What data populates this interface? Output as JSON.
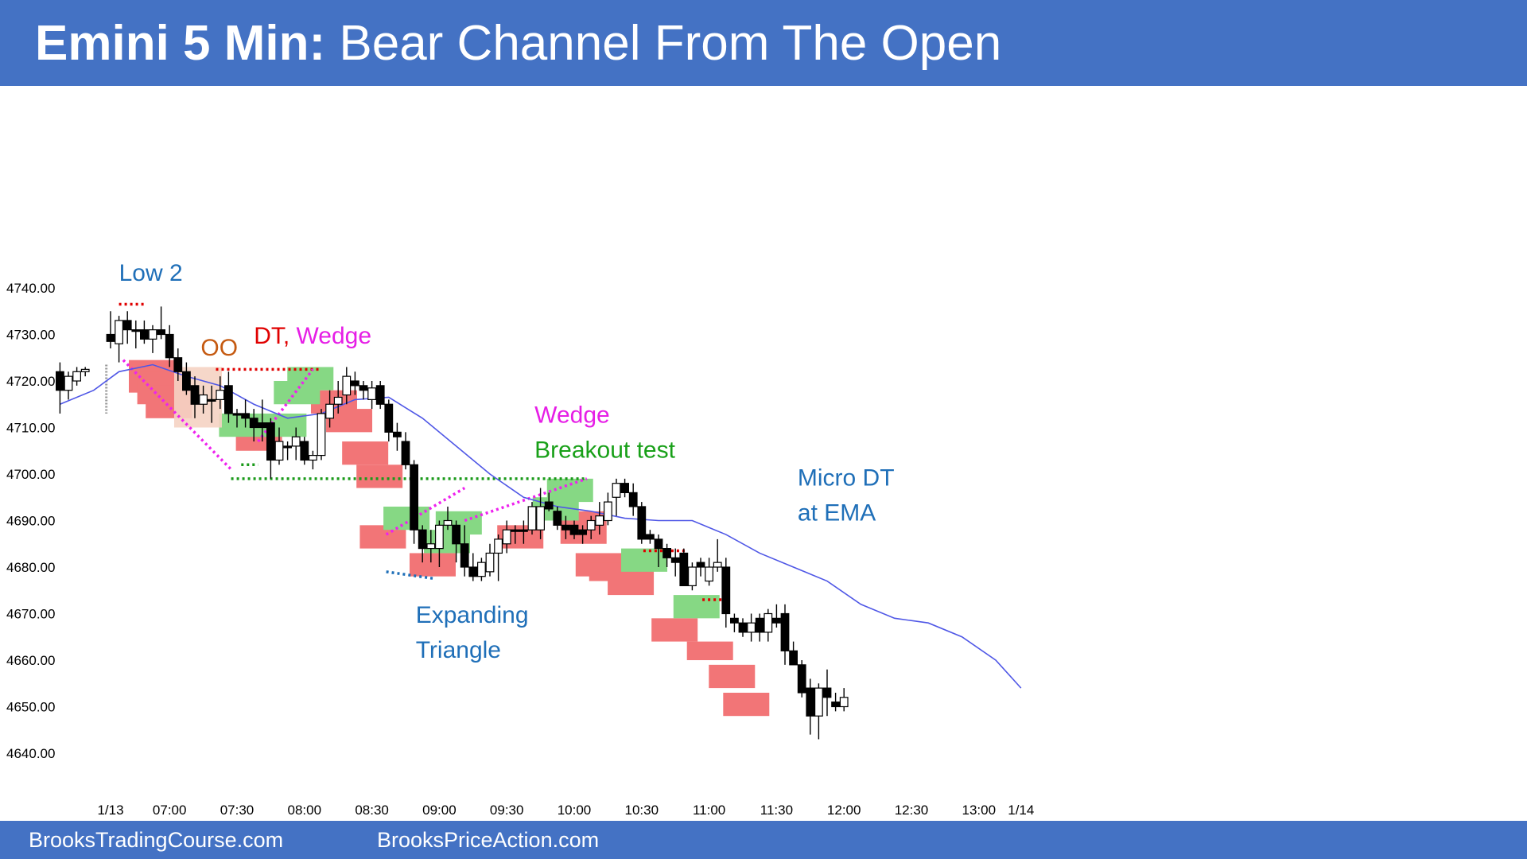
{
  "header": {
    "title_bold": "Emini 5 Min:",
    "title_rest": " Bear Channel From The Open"
  },
  "footer": {
    "left": "BrooksTradingCourse.com",
    "right": "BrooksPriceAction.com"
  },
  "colors": {
    "header_bg": "#4472c4",
    "bull_candle": "#ffffff",
    "bear_candle": "#000000",
    "ema": "#4f57e6",
    "bear_box": "#f27577",
    "bull_box": "#86d884",
    "oo_box": "#f5d3c3",
    "red_dot": "#e00000",
    "green_dot": "#1a9a1a",
    "magenta": "#ee22ee",
    "blue_dot": "#1f6fb8",
    "gray_dot": "#999999",
    "label_blue": "#1f6fb8",
    "label_orange": "#c55a11",
    "label_red": "#e00000",
    "label_magenta": "#e61ee6",
    "label_green": "#18a018"
  },
  "chart_data": {
    "type": "candlestick",
    "title": "Emini 5 Min: Bear Channel From The Open",
    "ylim": [
      4636,
      4752
    ],
    "x_range": [
      -1,
      143
    ],
    "y_ticks": [
      "4740.00",
      "4730.00",
      "4720.00",
      "4710.00",
      "4700.00",
      "4690.00",
      "4680.00",
      "4670.00",
      "4660.00",
      "4650.00",
      "4640.00"
    ],
    "x_ticks": [
      {
        "label": "1/13",
        "bar": 5
      },
      {
        "label": "07:00",
        "bar": 12
      },
      {
        "label": "07:30",
        "bar": 20
      },
      {
        "label": "08:00",
        "bar": 28
      },
      {
        "label": "08:30",
        "bar": 36
      },
      {
        "label": "09:00",
        "bar": 44
      },
      {
        "label": "09:30",
        "bar": 52
      },
      {
        "label": "10:00",
        "bar": 60
      },
      {
        "label": "10:30",
        "bar": 68
      },
      {
        "label": "11:00",
        "bar": 76
      },
      {
        "label": "11:30",
        "bar": 84
      },
      {
        "label": "12:00",
        "bar": 92
      },
      {
        "label": "12:30",
        "bar": 100
      },
      {
        "label": "13:00",
        "bar": 108
      },
      {
        "label": "1/14",
        "bar": 113
      }
    ],
    "overnight_candles": [
      [
        4722,
        4724,
        4713,
        4718
      ],
      [
        4718,
        4722,
        4716,
        4721
      ],
      [
        4720,
        4723,
        4719,
        4722
      ],
      [
        4722,
        4723,
        4721,
        4722.5
      ]
    ],
    "candles": [
      [
        4730,
        4735,
        4727,
        4728.5
      ],
      [
        4728,
        4734,
        4724,
        4733
      ],
      [
        4733,
        4735,
        4728,
        4731
      ],
      [
        4731,
        4733,
        4727,
        4731
      ],
      [
        4731,
        4733,
        4728,
        4729
      ],
      [
        4729,
        4732,
        4726,
        4731
      ],
      [
        4731,
        4736,
        4729,
        4730
      ],
      [
        4730,
        4732,
        4723,
        4725
      ],
      [
        4725,
        4727,
        4720,
        4722
      ],
      [
        4722,
        4724,
        4717,
        4718
      ],
      [
        4719,
        4721,
        4712,
        4715
      ],
      [
        4715,
        4719,
        4713,
        4717
      ],
      [
        4716,
        4719,
        4711,
        4716
      ],
      [
        4716,
        4721,
        4714,
        4718
      ],
      [
        4719,
        4722,
        4711,
        4713
      ],
      [
        4713,
        4714,
        4710,
        4713
      ],
      [
        4713,
        4716,
        4710,
        4712
      ],
      [
        4712,
        4714,
        4707,
        4710
      ],
      [
        4711,
        4716,
        4707,
        4710
      ],
      [
        4711,
        4712,
        4699,
        4703
      ],
      [
        4703,
        4710,
        4702,
        4707
      ],
      [
        4706,
        4707,
        4703,
        4706
      ],
      [
        4706,
        4710,
        4703,
        4708
      ],
      [
        4707,
        4708,
        4702,
        4703
      ],
      [
        4703,
        4705,
        4701,
        4704
      ],
      [
        4704,
        4714,
        4703,
        4713
      ],
      [
        4712,
        4718,
        4710,
        4715
      ],
      [
        4715,
        4720,
        4713,
        4716.5
      ],
      [
        4717,
        4723,
        4715,
        4721
      ],
      [
        4720,
        4722,
        4717,
        4719
      ],
      [
        4719,
        4720,
        4716,
        4718
      ],
      [
        4716,
        4720,
        4714,
        4718.5
      ],
      [
        4719,
        4720,
        4714,
        4715
      ],
      [
        4715,
        4716,
        4707,
        4709
      ],
      [
        4709,
        4711,
        4705,
        4708
      ],
      [
        4707,
        4709,
        4701,
        4702
      ],
      [
        4702,
        4703,
        4685,
        4688
      ],
      [
        4688,
        4689,
        4681,
        4684
      ],
      [
        4684,
        4688,
        4681,
        4685
      ],
      [
        4684,
        4690,
        4680,
        4689
      ],
      [
        4689,
        4693,
        4688,
        4690
      ],
      [
        4689,
        4690,
        4681,
        4685
      ],
      [
        4685,
        4689,
        4678,
        4680
      ],
      [
        4680,
        4683,
        4677,
        4678
      ],
      [
        4678,
        4682,
        4677,
        4681
      ],
      [
        4679,
        4685,
        4678,
        4683
      ],
      [
        4683,
        4687,
        4677,
        4686
      ],
      [
        4685,
        4690,
        4683,
        4688
      ],
      [
        4688,
        4689,
        4685,
        4688
      ],
      [
        4688,
        4690,
        4685,
        4688
      ],
      [
        4688,
        4694,
        4687,
        4693
      ],
      [
        4688,
        4697,
        4686,
        4693
      ],
      [
        4694,
        4696,
        4692,
        4692.5
      ],
      [
        4692,
        4693,
        4688,
        4689
      ],
      [
        4689,
        4691,
        4686,
        4688
      ],
      [
        4689,
        4690,
        4686,
        4687
      ],
      [
        4688,
        4689,
        4685,
        4687
      ],
      [
        4688,
        4691,
        4686,
        4690
      ],
      [
        4689,
        4694,
        4687,
        4691
      ],
      [
        4690,
        4696,
        4689,
        4694
      ],
      [
        4695,
        4699,
        4691,
        4698
      ],
      [
        4698,
        4699,
        4695,
        4696
      ],
      [
        4696,
        4698,
        4691,
        4693
      ],
      [
        4693,
        4694,
        4685,
        4686
      ],
      [
        4687,
        4688,
        4685,
        4686
      ],
      [
        4686,
        4687,
        4680,
        4684
      ],
      [
        4684,
        4685,
        4680,
        4682
      ],
      [
        4682,
        4684,
        4678,
        4681
      ],
      [
        4683,
        4684,
        4676,
        4676
      ],
      [
        4676,
        4681,
        4675,
        4680
      ],
      [
        4681,
        4682,
        4678,
        4680
      ],
      [
        4677,
        4682,
        4676,
        4680
      ],
      [
        4680,
        4686,
        4679,
        4681
      ],
      [
        4680,
        4682,
        4667,
        4670
      ],
      [
        4669,
        4670,
        4666,
        4668
      ],
      [
        4668,
        4669,
        4665,
        4666
      ],
      [
        4666,
        4670,
        4664,
        4668
      ],
      [
        4669,
        4670,
        4664,
        4666
      ],
      [
        4666,
        4671,
        4664,
        4670
      ],
      [
        4669,
        4672,
        4667,
        4668
      ],
      [
        4670,
        4672,
        4659,
        4662
      ],
      [
        4662,
        4664,
        4659,
        4659
      ],
      [
        4659,
        4660,
        4652,
        4653
      ],
      [
        4654,
        4656,
        4644,
        4648
      ],
      [
        4648,
        4655,
        4643,
        4654
      ],
      [
        4654,
        4658,
        4648,
        4652
      ],
      [
        4651,
        4653,
        4649,
        4650
      ],
      [
        4650,
        4654,
        4649,
        4652
      ]
    ],
    "ema_bars": [
      -1,
      3,
      6,
      10,
      14,
      18,
      22,
      26,
      30,
      34,
      38,
      42,
      46,
      50,
      54,
      58,
      62,
      66,
      70,
      74,
      78,
      82,
      86,
      90,
      94,
      98,
      102,
      106,
      110,
      113
    ],
    "ema_values": [
      4715,
      4718,
      4722,
      4723.5,
      4721,
      4719,
      4715,
      4712,
      4713,
      4716,
      4716.5,
      4712,
      4706,
      4700,
      4695,
      4693,
      4692,
      4690.5,
      4690,
      4690,
      4687,
      4683,
      4680,
      4677,
      4672,
      4669,
      4668,
      4665,
      4660,
      4654
    ],
    "annotations": [
      {
        "text": "Low 2",
        "color": "label_blue",
        "bar": 6,
        "y": 4741.5
      },
      {
        "text": "OO",
        "color": "label_orange",
        "bar": 15.7,
        "y": 4725.5
      },
      {
        "text": "Wedge",
        "color": "label_magenta",
        "bar": 55.3,
        "y": 4711
      },
      {
        "text": "Breakout test",
        "color": "label_green",
        "bar": 55.3,
        "y": 4703.5
      },
      {
        "text": "Micro DT",
        "color": "label_blue",
        "bar": 86.5,
        "y": 4697.5
      },
      {
        "text": "at EMA",
        "color": "label_blue",
        "bar": 86.5,
        "y": 4690
      },
      {
        "text": "Expanding",
        "color": "label_blue",
        "bar": 41.2,
        "y": 4668
      },
      {
        "text": "Triangle",
        "color": "label_blue",
        "bar": 41.2,
        "y": 4660.5
      }
    ],
    "annotation_dt": {
      "bar": 22,
      "y": 4728,
      "text_a": "DT,",
      "text_b": " Wedge",
      "color_a": "label_red",
      "color_b": "label_magenta"
    }
  }
}
